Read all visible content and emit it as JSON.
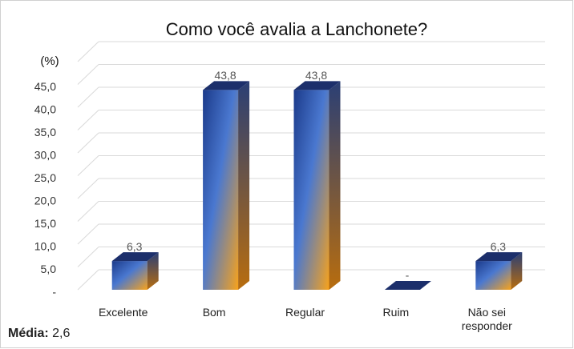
{
  "chart_data": {
    "type": "bar3d",
    "title": "Como você avalia a Lanchonete?",
    "ylabel": "(%)",
    "categories": [
      "Excelente",
      "Bom",
      "Regular",
      "Ruim",
      "Não sei responder"
    ],
    "values": [
      6.3,
      43.8,
      43.8,
      0,
      6.3
    ],
    "value_labels": [
      "6,3",
      "43,8",
      "43,8",
      "-",
      "6,3"
    ],
    "ylim": [
      0,
      50
    ],
    "yticks": [
      {
        "value": 0,
        "label": "-"
      },
      {
        "value": 5,
        "label": "5,0"
      },
      {
        "value": 10,
        "label": "10,0"
      },
      {
        "value": 15,
        "label": "15,0"
      },
      {
        "value": 20,
        "label": "20,0"
      },
      {
        "value": 25,
        "label": "25,0"
      },
      {
        "value": 30,
        "label": "30,0"
      },
      {
        "value": 35,
        "label": "35,0"
      },
      {
        "value": 40,
        "label": "40,0"
      },
      {
        "value": 45,
        "label": "45,0"
      }
    ],
    "grid": true,
    "note_label": "Média:",
    "note_text": "2,6"
  }
}
